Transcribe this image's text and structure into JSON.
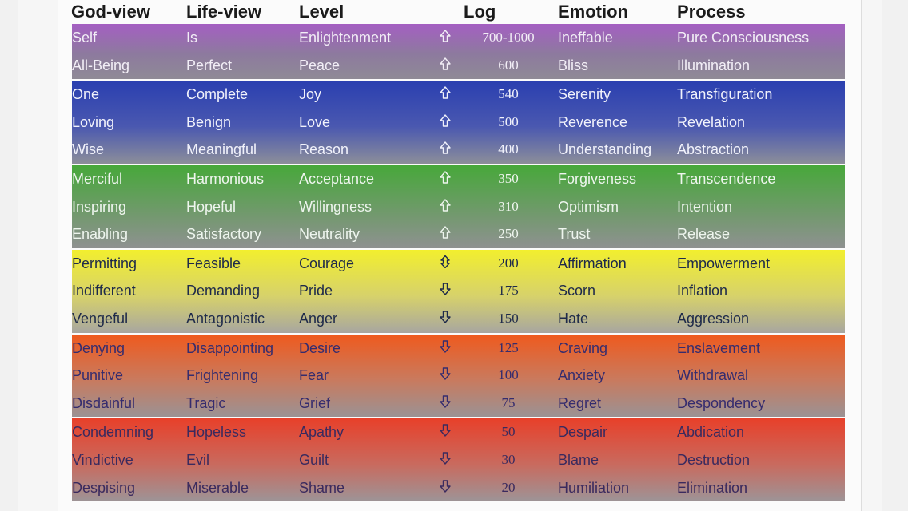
{
  "columns": {
    "god_view": "God-view",
    "life_view": "Life-view",
    "level": "Level",
    "log": "Log",
    "emotion": "Emotion",
    "process": "Process"
  },
  "bands": [
    {
      "name": "violet",
      "colors": [
        "#a45fc2",
        "#8d7a9e",
        "#8f8a96"
      ],
      "text_color": "#f2eef6",
      "rows": [
        {
          "god_view": "Self",
          "life_view": "Is",
          "level": "Enlightenment",
          "direction": "up",
          "log": "700-1000",
          "emotion": "Ineffable",
          "process": "Pure Consciousness"
        },
        {
          "god_view": "All-Being",
          "life_view": "Perfect",
          "level": "Peace",
          "direction": "up",
          "log": "600",
          "emotion": "Bliss",
          "process": "Illumination"
        }
      ]
    },
    {
      "name": "blue",
      "colors": [
        "#2a3fb0",
        "#4a58b0",
        "#8c8e9a"
      ],
      "text_color": "#f1f2fb",
      "rows": [
        {
          "god_view": "One",
          "life_view": "Complete",
          "level": "Joy",
          "direction": "up",
          "log": "540",
          "emotion": "Serenity",
          "process": "Transfiguration"
        },
        {
          "god_view": "Loving",
          "life_view": "Benign",
          "level": "Love",
          "direction": "up",
          "log": "500",
          "emotion": "Reverence",
          "process": "Revelation"
        },
        {
          "god_view": "Wise",
          "life_view": "Meaningful",
          "level": "Reason",
          "direction": "up",
          "log": "400",
          "emotion": "Understanding",
          "process": "Abstraction"
        }
      ]
    },
    {
      "name": "green",
      "colors": [
        "#47a83a",
        "#6f9a6a",
        "#8f9191"
      ],
      "text_color": "#eef5ee",
      "rows": [
        {
          "god_view": "Merciful",
          "life_view": "Harmonious",
          "level": "Acceptance",
          "direction": "up",
          "log": "350",
          "emotion": "Forgiveness",
          "process": "Transcendence"
        },
        {
          "god_view": "Inspiring",
          "life_view": "Hopeful",
          "level": "Willingness",
          "direction": "up",
          "log": "310",
          "emotion": "Optimism",
          "process": "Intention"
        },
        {
          "god_view": "Enabling",
          "life_view": "Satisfactory",
          "level": "Neutrality",
          "direction": "up",
          "log": "250",
          "emotion": "Trust",
          "process": "Release"
        }
      ]
    },
    {
      "name": "yellow",
      "colors": [
        "#f2ef2e",
        "#d7d26a",
        "#a8a6a0"
      ],
      "text_color": "#1e2a4a",
      "rows": [
        {
          "god_view": "Permitting",
          "life_view": "Feasible",
          "level": "Courage",
          "direction": "both",
          "log": "200",
          "emotion": "Affirmation",
          "process": "Empowerment"
        },
        {
          "god_view": "Indifferent",
          "life_view": "Demanding",
          "level": "Pride",
          "direction": "down",
          "log": "175",
          "emotion": "Scorn",
          "process": "Inflation"
        },
        {
          "god_view": "Vengeful",
          "life_view": "Antagonistic",
          "level": "Anger",
          "direction": "down",
          "log": "150",
          "emotion": "Hate",
          "process": "Aggression"
        }
      ]
    },
    {
      "name": "orange",
      "colors": [
        "#ef5a1e",
        "#c97a5e",
        "#9b9294"
      ],
      "text_color": "#352c6e",
      "rows": [
        {
          "god_view": "Denying",
          "life_view": "Disappointing",
          "level": "Desire",
          "direction": "down",
          "log": "125",
          "emotion": "Craving",
          "process": "Enslavement"
        },
        {
          "god_view": "Punitive",
          "life_view": "Frightening",
          "level": "Fear",
          "direction": "down",
          "log": "100",
          "emotion": "Anxiety",
          "process": "Withdrawal"
        },
        {
          "god_view": "Disdainful",
          "life_view": "Tragic",
          "level": "Grief",
          "direction": "down",
          "log": "75",
          "emotion": "Regret",
          "process": "Despondency"
        }
      ]
    },
    {
      "name": "red",
      "colors": [
        "#e8402a",
        "#c96a5e",
        "#9d9497"
      ],
      "text_color": "#3a2a5e",
      "rows": [
        {
          "god_view": "Condemning",
          "life_view": "Hopeless",
          "level": "Apathy",
          "direction": "down",
          "log": "50",
          "emotion": "Despair",
          "process": "Abdication"
        },
        {
          "god_view": "Vindictive",
          "life_view": "Evil",
          "level": "Guilt",
          "direction": "down",
          "log": "30",
          "emotion": "Blame",
          "process": "Destruction"
        },
        {
          "god_view": "Despising",
          "life_view": "Miserable",
          "level": "Shame",
          "direction": "down",
          "log": "20",
          "emotion": "Humiliation",
          "process": "Elimination"
        }
      ]
    }
  ]
}
